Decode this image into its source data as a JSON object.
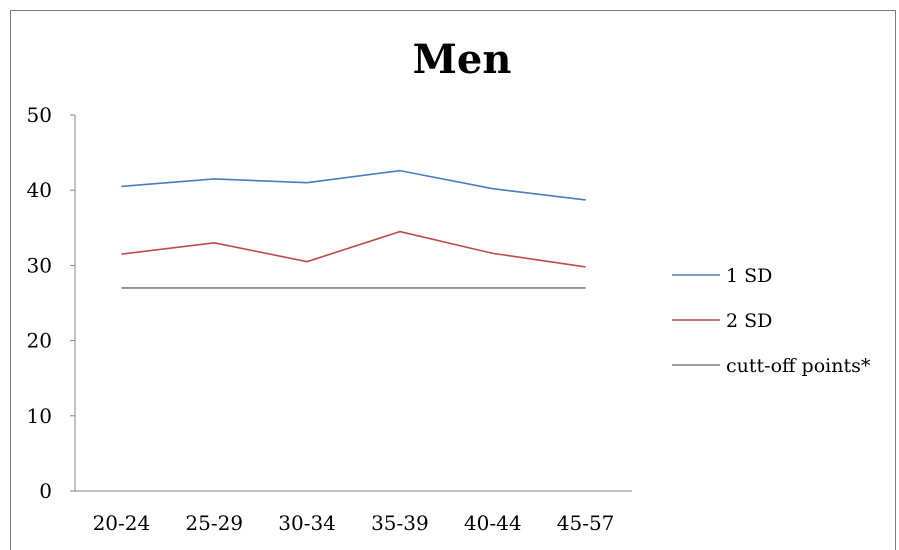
{
  "chart_data": {
    "type": "line",
    "title": "Men",
    "categories": [
      "20-24",
      "25-29",
      "30-34",
      "35-39",
      "40-44",
      "45-57"
    ],
    "ylim": [
      0,
      50
    ],
    "yticks": [
      0,
      10,
      20,
      30,
      40,
      50
    ],
    "grid": false,
    "legend_position": "right",
    "series": [
      {
        "name": "1 SD",
        "color": "#4a7ebb",
        "values": [
          40.5,
          41.5,
          41.0,
          42.6,
          40.2,
          38.7
        ]
      },
      {
        "name": "2 SD",
        "color": "#be4b48",
        "values": [
          31.5,
          33.0,
          30.5,
          34.5,
          31.6,
          29.8
        ]
      },
      {
        "name": "cutt-off points*",
        "color": "#7f7f7f",
        "values": [
          27,
          27,
          27,
          27,
          27,
          27
        ]
      }
    ]
  }
}
